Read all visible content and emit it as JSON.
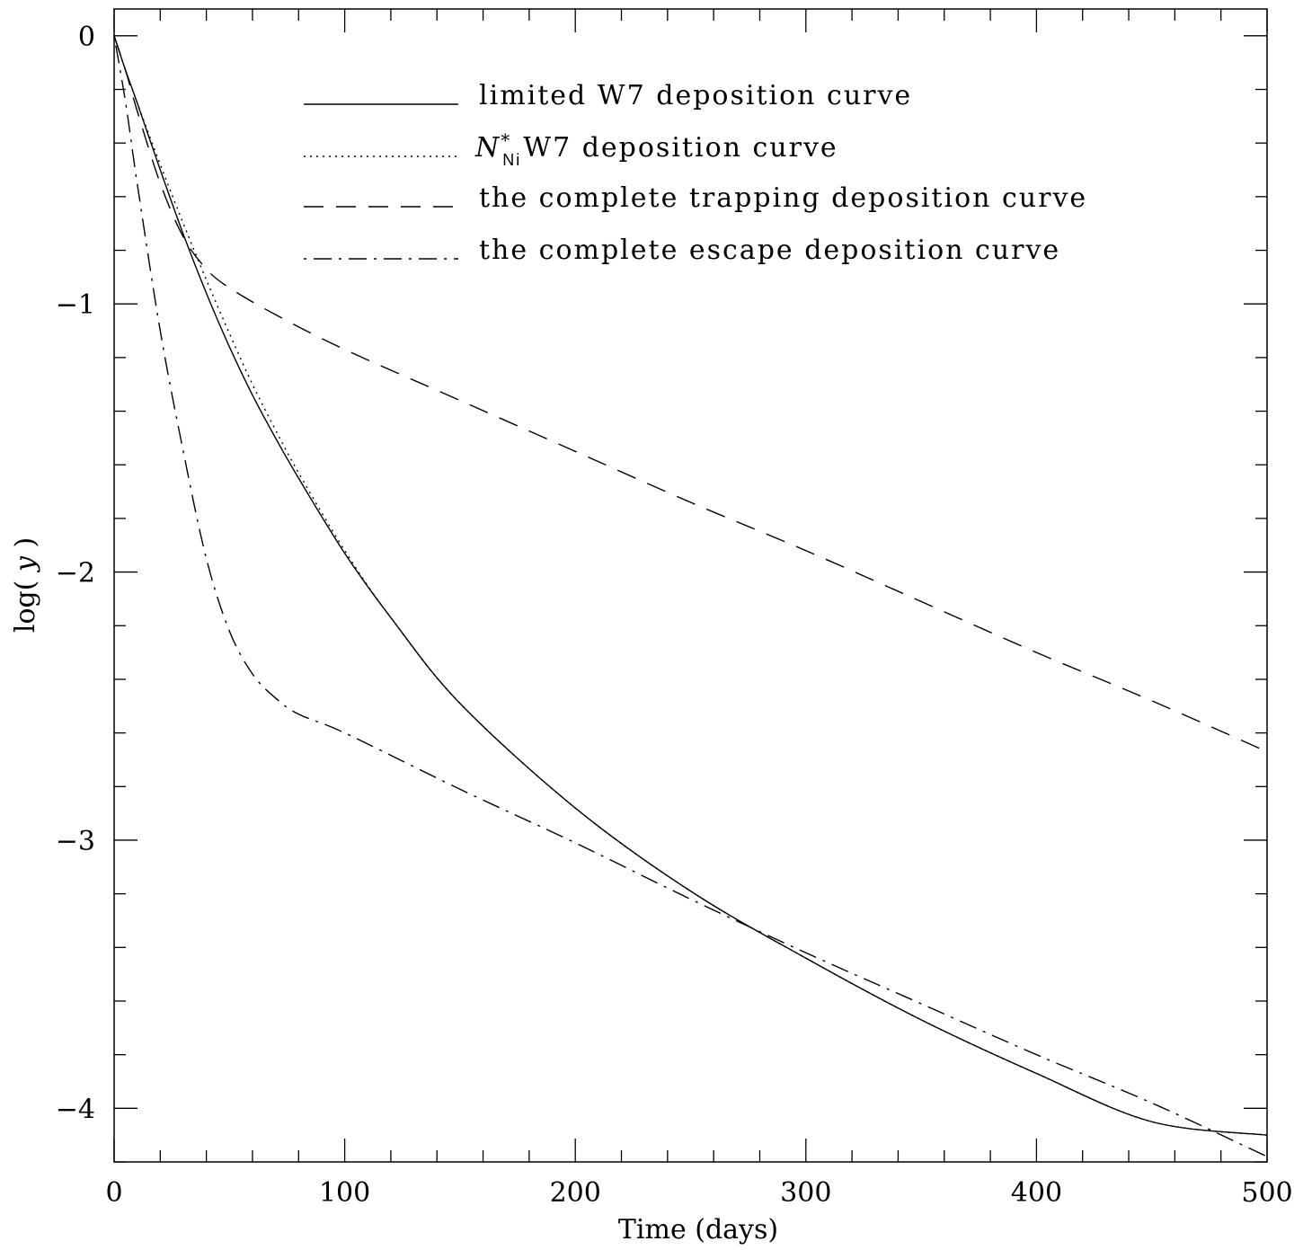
{
  "chart_data": {
    "type": "line",
    "xlabel": "Time (days)",
    "ylabel_parts": [
      "log( ",
      "y",
      " )"
    ],
    "xlim": [
      0,
      500
    ],
    "ylim": [
      -4.2,
      0.1
    ],
    "x_ticks": [
      0,
      100,
      200,
      300,
      400,
      500
    ],
    "x_tick_labels": [
      "0",
      "100",
      "200",
      "300",
      "400",
      "500"
    ],
    "x_minor_step": 20,
    "y_ticks": [
      0,
      -1,
      -2,
      -3,
      -4
    ],
    "y_tick_labels": [
      "0",
      "−1",
      "−2",
      "−3",
      "−4"
    ],
    "y_minor_step": 0.2,
    "grid": false,
    "legend_position": "top",
    "series": [
      {
        "name": "limited W7 deposition curve",
        "style": "solid",
        "x": [
          0,
          5,
          10,
          20,
          30,
          40,
          50,
          60,
          70,
          80,
          100,
          120,
          150,
          200,
          250,
          300,
          350,
          400,
          450,
          500
        ],
        "y": [
          0,
          -0.13,
          -0.25,
          -0.5,
          -0.74,
          -0.96,
          -1.16,
          -1.34,
          -1.5,
          -1.65,
          -1.93,
          -2.17,
          -2.49,
          -2.88,
          -3.19,
          -3.44,
          -3.67,
          -3.87,
          -4.05,
          -4.1
        ]
      },
      {
        "name": "W7 deposition curve",
        "style": "dotted",
        "x": [
          0,
          5,
          10,
          20,
          30,
          40,
          50,
          60,
          70,
          80,
          100,
          120,
          150,
          200,
          250,
          300,
          350,
          400,
          450,
          500
        ],
        "y": [
          0,
          -0.13,
          -0.25,
          -0.48,
          -0.7,
          -0.91,
          -1.11,
          -1.3,
          -1.47,
          -1.63,
          -1.92,
          -2.17,
          -2.49,
          -2.88,
          -3.19,
          -3.44,
          -3.67,
          -3.87,
          -4.05,
          -4.1
        ]
      },
      {
        "name": "the complete trapping deposition curve",
        "style": "dashed",
        "x": [
          0,
          5,
          10,
          20,
          30,
          40,
          50,
          70,
          100,
          150,
          200,
          250,
          300,
          350,
          400,
          450,
          500
        ],
        "y": [
          0,
          -0.13,
          -0.28,
          -0.55,
          -0.75,
          -0.87,
          -0.94,
          -1.04,
          -1.17,
          -1.36,
          -1.55,
          -1.74,
          -1.92,
          -2.11,
          -2.3,
          -2.48,
          -2.67
        ]
      },
      {
        "name": "the complete escape deposition curve",
        "style": "dashdot",
        "x": [
          0,
          5,
          10,
          20,
          30,
          40,
          50,
          60,
          70,
          80,
          100,
          150,
          200,
          250,
          300,
          350,
          400,
          450,
          500
        ],
        "y": [
          0,
          -0.25,
          -0.55,
          -1.1,
          -1.55,
          -1.95,
          -2.22,
          -2.38,
          -2.47,
          -2.53,
          -2.6,
          -2.81,
          -3.01,
          -3.22,
          -3.42,
          -3.61,
          -3.8,
          -3.98,
          -4.18
        ]
      }
    ],
    "legend": [
      {
        "style": "solid",
        "text": "limited W7 deposition curve"
      },
      {
        "style": "dotted",
        "text_prefix": "N",
        "text_sup": "*",
        "text_sub": "Ni",
        "text": "W7 deposition curve"
      },
      {
        "style": "dashed",
        "text": "the complete trapping deposition curve"
      },
      {
        "style": "dashdot",
        "text": "the complete escape deposition curve"
      }
    ]
  }
}
